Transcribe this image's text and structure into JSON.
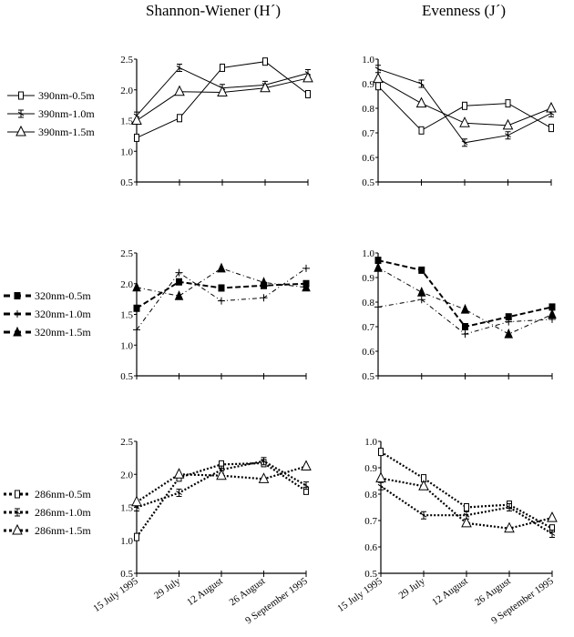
{
  "titles": {
    "left": "Shannon-Wiener (H´)",
    "right": "Evenness (J´)"
  },
  "chart_data": [
    {
      "type": "line",
      "panel": "top-left",
      "title": "Shannon-Wiener (H´)",
      "categories": [
        "15 July 1995",
        "29 July",
        "12 August",
        "26 August",
        "9 September 1995"
      ],
      "ylim": [
        0.5,
        2.5
      ],
      "yticks": [
        "0.5",
        "1.0",
        "1.5",
        "2.0",
        "2.5"
      ],
      "legend_placement": "left",
      "series": [
        {
          "name": "390nm-0.5m",
          "marker": "square",
          "dash": "solid",
          "values": [
            1.22,
            1.54,
            2.36,
            2.46,
            1.93
          ]
        },
        {
          "name": "390nm-1.0m",
          "marker": "x",
          "dash": "solid",
          "values": [
            1.58,
            2.36,
            2.03,
            2.08,
            2.27
          ]
        },
        {
          "name": "390nm-1.5m",
          "marker": "triangle",
          "dash": "solid",
          "values": [
            1.5,
            1.97,
            1.96,
            2.03,
            2.19
          ]
        }
      ]
    },
    {
      "type": "line",
      "panel": "top-right",
      "title": "Evenness (J´)",
      "categories": [
        "15 July 1995",
        "29 July",
        "12 August",
        "26 August",
        "9 September 1995"
      ],
      "ylim": [
        0.5,
        1.0
      ],
      "yticks": [
        "0.5",
        "0.6",
        "0.7",
        "0.8",
        "0.9",
        "1.0"
      ],
      "series": [
        {
          "name": "390nm-0.5m",
          "marker": "square",
          "dash": "solid",
          "values": [
            0.89,
            0.71,
            0.81,
            0.82,
            0.72
          ]
        },
        {
          "name": "390nm-1.0m",
          "marker": "x",
          "dash": "solid",
          "values": [
            0.96,
            0.9,
            0.66,
            0.69,
            0.78
          ]
        },
        {
          "name": "390nm-1.5m",
          "marker": "triangle",
          "dash": "solid",
          "values": [
            0.92,
            0.82,
            0.74,
            0.73,
            0.8
          ]
        }
      ]
    },
    {
      "type": "line",
      "panel": "middle-left",
      "title": "Shannon-Wiener (H´)",
      "categories": [
        "15 July 1995",
        "29 July",
        "12 August",
        "26 August",
        "9 September 1995"
      ],
      "ylim": [
        0.5,
        2.5
      ],
      "yticks": [
        "0.5",
        "1.0",
        "1.5",
        "2.0",
        "2.5"
      ],
      "legend_placement": "left",
      "series": [
        {
          "name": "320nm-0.5m",
          "marker": "filled-square",
          "dash": "dashed",
          "values": [
            1.6,
            2.03,
            1.93,
            1.97,
            2.0
          ]
        },
        {
          "name": "320nm-1.0m",
          "marker": "plus",
          "dash": "dash-dot",
          "values": [
            1.25,
            2.18,
            1.72,
            1.77,
            2.25
          ]
        },
        {
          "name": "320nm-1.5m",
          "marker": "filled-triangle",
          "dash": "dash-dot",
          "values": [
            1.94,
            1.8,
            2.25,
            2.02,
            1.94
          ]
        }
      ]
    },
    {
      "type": "line",
      "panel": "middle-right",
      "title": "Evenness (J´)",
      "categories": [
        "15 July 1995",
        "29 July",
        "12 August",
        "26 August",
        "9 September 1995"
      ],
      "ylim": [
        0.5,
        1.0
      ],
      "yticks": [
        "0.5",
        "0.6",
        "0.7",
        "0.8",
        "0.9",
        "1.0"
      ],
      "series": [
        {
          "name": "320nm-0.5m",
          "marker": "filled-square",
          "dash": "dashed",
          "values": [
            0.97,
            0.93,
            0.7,
            0.74,
            0.78
          ]
        },
        {
          "name": "320nm-1.0m",
          "marker": "plus",
          "dash": "dash-dot",
          "values": [
            0.78,
            0.81,
            0.67,
            0.72,
            0.73
          ]
        },
        {
          "name": "320nm-1.5m",
          "marker": "filled-triangle",
          "dash": "dash-dot",
          "values": [
            0.94,
            0.84,
            0.77,
            0.67,
            0.75
          ]
        }
      ]
    },
    {
      "type": "line",
      "panel": "bottom-left",
      "title": "Shannon-Wiener (H´)",
      "categories": [
        "15 July 1995",
        "29 July",
        "12 August",
        "26 August",
        "9 September 1995"
      ],
      "ylim": [
        0.5,
        2.5
      ],
      "yticks": [
        "0.5",
        "1.0",
        "1.5",
        "2.0",
        "2.5"
      ],
      "xlabels_rotated": true,
      "legend_placement": "left",
      "series": [
        {
          "name": "286nm-0.5m",
          "marker": "square",
          "dash": "dotted",
          "values": [
            1.05,
            1.95,
            2.15,
            2.17,
            1.75
          ]
        },
        {
          "name": "286nm-1.0m",
          "marker": "x",
          "dash": "dotted",
          "values": [
            1.5,
            1.72,
            2.07,
            2.2,
            1.83
          ]
        },
        {
          "name": "286nm-1.5m",
          "marker": "triangle",
          "dash": "dotted",
          "values": [
            1.58,
            2.0,
            1.98,
            1.93,
            2.12
          ]
        }
      ]
    },
    {
      "type": "line",
      "panel": "bottom-right",
      "title": "Evenness (J´)",
      "categories": [
        "15 July 1995",
        "29 July",
        "12 August",
        "26 August",
        "9 September 1995"
      ],
      "ylim": [
        0.5,
        1.0
      ],
      "yticks": [
        "0.5",
        "0.6",
        "0.7",
        "0.8",
        "0.9",
        "1.0"
      ],
      "xlabels_rotated": true,
      "series": [
        {
          "name": "286nm-0.5m",
          "marker": "square",
          "dash": "dotted",
          "values": [
            0.96,
            0.86,
            0.75,
            0.76,
            0.67
          ]
        },
        {
          "name": "286nm-1.0m",
          "marker": "x",
          "dash": "dotted",
          "values": [
            0.83,
            0.72,
            0.72,
            0.75,
            0.65
          ]
        },
        {
          "name": "286nm-1.5m",
          "marker": "triangle",
          "dash": "dotted",
          "values": [
            0.86,
            0.83,
            0.69,
            0.67,
            0.71
          ]
        }
      ]
    }
  ]
}
